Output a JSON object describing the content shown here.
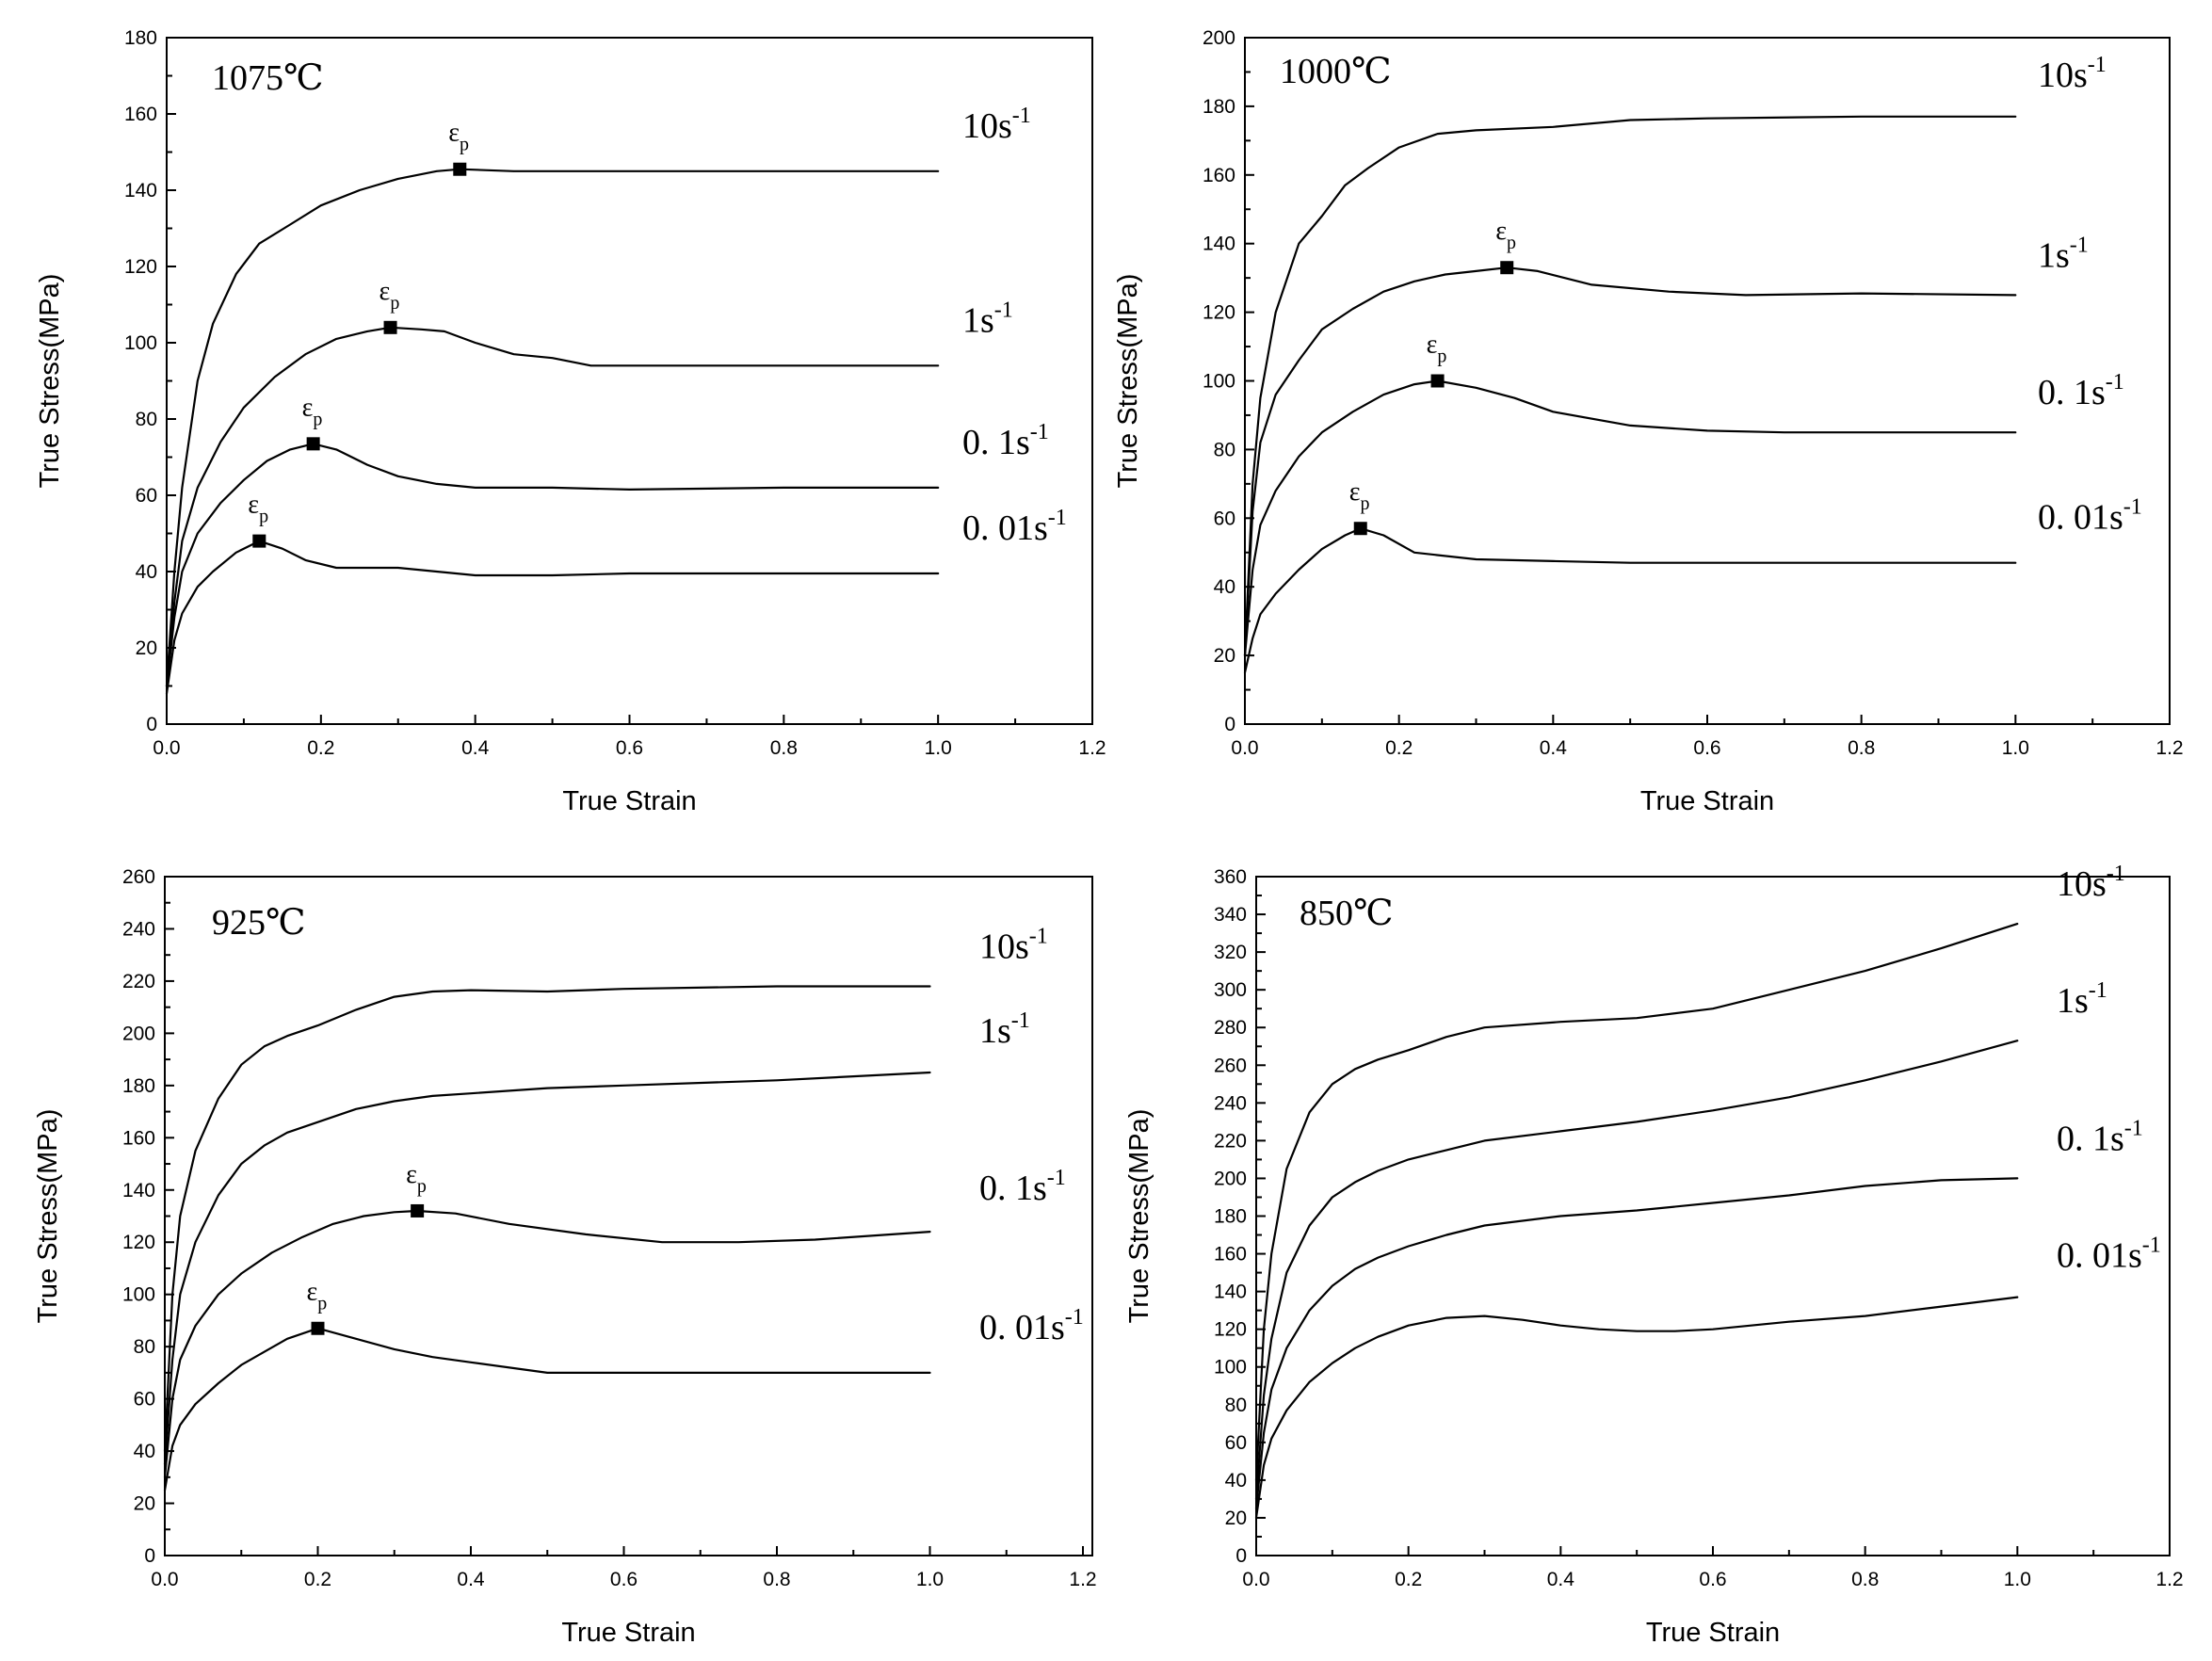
{
  "chart_data": [
    {
      "type": "line",
      "title": "1075℃",
      "xlabel": "True Strain",
      "ylabel": "True Stress(MPa)",
      "xlim": [
        0,
        1.25
      ],
      "ylim": [
        0,
        180
      ],
      "xticks": [
        "0.0",
        "0.2",
        "0.4",
        "0.6",
        "0.8",
        "1.0",
        "1.2"
      ],
      "yticks": [
        "0",
        "20",
        "40",
        "60",
        "80",
        "100",
        "120",
        "140",
        "160",
        "180"
      ],
      "peak_symbol": "ε",
      "peak_subscript": "p",
      "series": [
        {
          "name": "10s",
          "exp": "-1",
          "x": [
            0,
            0.01,
            0.02,
            0.04,
            0.06,
            0.09,
            0.12,
            0.16,
            0.2,
            0.25,
            0.3,
            0.35,
            0.38,
            0.45,
            0.6,
            0.8,
            1.0
          ],
          "y": [
            10,
            40,
            62,
            90,
            105,
            118,
            126,
            131,
            136,
            140,
            143,
            145,
            145.5,
            145,
            145,
            145,
            145
          ],
          "peak": {
            "x": 0.38,
            "y": 145.5
          }
        },
        {
          "name": "1s",
          "exp": "-1",
          "x": [
            0,
            0.01,
            0.02,
            0.04,
            0.07,
            0.1,
            0.14,
            0.18,
            0.22,
            0.26,
            0.29,
            0.33,
            0.36,
            0.4,
            0.45,
            0.5,
            0.55,
            0.6,
            0.8,
            1.0
          ],
          "y": [
            10,
            32,
            48,
            62,
            74,
            83,
            91,
            97,
            101,
            103,
            104,
            103.5,
            103,
            100,
            97,
            96,
            94,
            94,
            94,
            94
          ],
          "peak": {
            "x": 0.29,
            "y": 104
          }
        },
        {
          "name": "0. 1s",
          "exp": "-1",
          "x": [
            0,
            0.01,
            0.02,
            0.04,
            0.07,
            0.1,
            0.13,
            0.16,
            0.19,
            0.22,
            0.26,
            0.3,
            0.35,
            0.4,
            0.5,
            0.6,
            0.8,
            1.0
          ],
          "y": [
            10,
            28,
            40,
            50,
            58,
            64,
            69,
            72,
            73.5,
            72,
            68,
            65,
            63,
            62,
            62,
            61.5,
            62,
            62
          ],
          "peak": {
            "x": 0.19,
            "y": 73.5
          }
        },
        {
          "name": "0. 01s",
          "exp": "-1",
          "x": [
            0,
            0.01,
            0.02,
            0.04,
            0.06,
            0.09,
            0.12,
            0.15,
            0.18,
            0.22,
            0.3,
            0.4,
            0.5,
            0.6,
            0.8,
            1.0
          ],
          "y": [
            8,
            22,
            29,
            36,
            40,
            45,
            48,
            46,
            43,
            41,
            41,
            39,
            39,
            39.5,
            39.5,
            39.5
          ],
          "peak": {
            "x": 0.12,
            "y": 48
          }
        }
      ]
    },
    {
      "type": "line",
      "title": "1000℃",
      "xlabel": "True Strain",
      "ylabel": "True Stress(MPa)",
      "xlim": [
        0,
        1.2
      ],
      "ylim": [
        0,
        200
      ],
      "xticks": [
        "0.0",
        "0.2",
        "0.4",
        "0.6",
        "0.8",
        "1.0",
        "1.2"
      ],
      "yticks": [
        "0",
        "20",
        "40",
        "60",
        "80",
        "100",
        "120",
        "140",
        "160",
        "180",
        "200"
      ],
      "peak_symbol": "ε",
      "peak_subscript": "p",
      "series": [
        {
          "name": "10s",
          "exp": "-1",
          "x": [
            0,
            0.01,
            0.02,
            0.04,
            0.07,
            0.1,
            0.13,
            0.16,
            0.2,
            0.25,
            0.3,
            0.4,
            0.5,
            0.6,
            0.8,
            1.0
          ],
          "y": [
            20,
            70,
            95,
            120,
            140,
            148,
            157,
            162,
            168,
            172,
            173,
            174,
            176,
            176.5,
            177,
            177
          ],
          "peak": null
        },
        {
          "name": "1s",
          "exp": "-1",
          "x": [
            0,
            0.01,
            0.02,
            0.04,
            0.07,
            0.1,
            0.14,
            0.18,
            0.22,
            0.26,
            0.3,
            0.34,
            0.38,
            0.45,
            0.55,
            0.65,
            0.8,
            1.0
          ],
          "y": [
            20,
            62,
            82,
            96,
            106,
            115,
            121,
            126,
            129,
            131,
            132,
            133,
            132,
            128,
            126,
            125,
            125.5,
            125
          ],
          "peak": {
            "x": 0.34,
            "y": 133
          }
        },
        {
          "name": "0. 1s",
          "exp": "-1",
          "x": [
            0,
            0.01,
            0.02,
            0.04,
            0.07,
            0.1,
            0.14,
            0.18,
            0.22,
            0.25,
            0.3,
            0.35,
            0.4,
            0.5,
            0.6,
            0.7,
            0.8,
            1.0
          ],
          "y": [
            20,
            45,
            58,
            68,
            78,
            85,
            91,
            96,
            99,
            100,
            98,
            95,
            91,
            87,
            85.5,
            85,
            85,
            85
          ],
          "peak": {
            "x": 0.25,
            "y": 100
          }
        },
        {
          "name": "0. 01s",
          "exp": "-1",
          "x": [
            0,
            0.01,
            0.02,
            0.04,
            0.07,
            0.1,
            0.13,
            0.15,
            0.18,
            0.22,
            0.3,
            0.4,
            0.5,
            0.6,
            0.8,
            1.0
          ],
          "y": [
            15,
            25,
            32,
            38,
            45,
            51,
            55,
            57,
            55,
            50,
            48,
            47.5,
            47,
            47,
            47,
            47
          ],
          "peak": {
            "x": 0.15,
            "y": 57
          }
        }
      ]
    },
    {
      "type": "line",
      "title": "925℃",
      "xlabel": "True Strain",
      "ylabel": "True Stress(MPa)",
      "xlim": [
        0,
        1.2
      ],
      "ylim": [
        0,
        260
      ],
      "xticks": [
        "0.0",
        "0.2",
        "0.4",
        "0.6",
        "0.8",
        "1.0",
        "1.2"
      ],
      "yticks": [
        "0",
        "20",
        "40",
        "60",
        "80",
        "100",
        "120",
        "140",
        "160",
        "180",
        "200",
        "220",
        "240",
        "260"
      ],
      "peak_symbol": "ε",
      "peak_subscript": "p",
      "series": [
        {
          "name": "10s",
          "exp": "-1",
          "x": [
            0,
            0.01,
            0.02,
            0.04,
            0.07,
            0.1,
            0.13,
            0.16,
            0.2,
            0.25,
            0.3,
            0.35,
            0.4,
            0.5,
            0.6,
            0.8,
            1.0
          ],
          "y": [
            40,
            100,
            130,
            155,
            175,
            188,
            195,
            199,
            203,
            209,
            214,
            216,
            216.5,
            216,
            217,
            218,
            218
          ],
          "peak": null
        },
        {
          "name": "1s",
          "exp": "-1",
          "x": [
            0,
            0.01,
            0.02,
            0.04,
            0.07,
            0.1,
            0.13,
            0.16,
            0.2,
            0.25,
            0.3,
            0.35,
            0.4,
            0.5,
            0.6,
            0.8,
            1.0
          ],
          "y": [
            35,
            75,
            100,
            120,
            138,
            150,
            157,
            162,
            166,
            171,
            174,
            176,
            177,
            179,
            180,
            182,
            185
          ],
          "peak": null
        },
        {
          "name": "0. 1s",
          "exp": "-1",
          "x": [
            0,
            0.01,
            0.02,
            0.04,
            0.07,
            0.1,
            0.14,
            0.18,
            0.22,
            0.26,
            0.3,
            0.33,
            0.38,
            0.45,
            0.55,
            0.65,
            0.75,
            0.85,
            1.0
          ],
          "y": [
            30,
            60,
            75,
            88,
            100,
            108,
            116,
            122,
            127,
            130,
            131.5,
            132,
            131,
            127,
            123,
            120,
            120,
            121,
            124
          ],
          "peak": {
            "x": 0.33,
            "y": 132
          }
        },
        {
          "name": "0. 01s",
          "exp": "-1",
          "x": [
            0,
            0.01,
            0.02,
            0.04,
            0.07,
            0.1,
            0.13,
            0.16,
            0.2,
            0.25,
            0.3,
            0.35,
            0.4,
            0.5,
            0.6,
            0.8,
            1.0
          ],
          "y": [
            25,
            42,
            50,
            58,
            66,
            73,
            78,
            83,
            87,
            83,
            79,
            76,
            74,
            70,
            70,
            70,
            70
          ],
          "peak": {
            "x": 0.2,
            "y": 87
          }
        }
      ]
    },
    {
      "type": "line",
      "title": "850℃",
      "xlabel": "True Strain",
      "ylabel": "True Stress(MPa)",
      "xlim": [
        0,
        1.2
      ],
      "ylim": [
        0,
        360
      ],
      "xticks": [
        "0.0",
        "0.2",
        "0.4",
        "0.6",
        "0.8",
        "1.0",
        "1.2"
      ],
      "yticks": [
        "0",
        "20",
        "40",
        "60",
        "80",
        "100",
        "120",
        "140",
        "160",
        "180",
        "200",
        "220",
        "240",
        "260",
        "280",
        "300",
        "320",
        "340",
        "360"
      ],
      "peak_symbol": "ε",
      "peak_subscript": "p",
      "series": [
        {
          "name": "10s",
          "exp": "-1",
          "x": [
            0,
            0.01,
            0.02,
            0.04,
            0.07,
            0.1,
            0.13,
            0.16,
            0.2,
            0.25,
            0.3,
            0.4,
            0.5,
            0.6,
            0.7,
            0.8,
            0.9,
            1.0
          ],
          "y": [
            40,
            120,
            160,
            205,
            235,
            250,
            258,
            263,
            268,
            275,
            280,
            283,
            285,
            290,
            300,
            310,
            322,
            335
          ],
          "peak": null
        },
        {
          "name": "1s",
          "exp": "-1",
          "x": [
            0,
            0.01,
            0.02,
            0.04,
            0.07,
            0.1,
            0.13,
            0.16,
            0.2,
            0.25,
            0.3,
            0.4,
            0.5,
            0.6,
            0.7,
            0.8,
            0.9,
            1.0
          ],
          "y": [
            30,
            85,
            115,
            150,
            175,
            190,
            198,
            204,
            210,
            215,
            220,
            225,
            230,
            236,
            243,
            252,
            262,
            273
          ],
          "peak": null
        },
        {
          "name": "0. 1s",
          "exp": "-1",
          "x": [
            0,
            0.01,
            0.02,
            0.04,
            0.07,
            0.1,
            0.13,
            0.16,
            0.2,
            0.25,
            0.3,
            0.4,
            0.5,
            0.6,
            0.7,
            0.8,
            0.9,
            1.0
          ],
          "y": [
            25,
            65,
            88,
            110,
            130,
            143,
            152,
            158,
            164,
            170,
            175,
            180,
            183,
            187,
            191,
            196,
            199,
            200
          ],
          "peak": null
        },
        {
          "name": "0. 01s",
          "exp": "-1",
          "x": [
            0,
            0.01,
            0.02,
            0.04,
            0.07,
            0.1,
            0.13,
            0.16,
            0.2,
            0.25,
            0.3,
            0.35,
            0.4,
            0.45,
            0.5,
            0.55,
            0.6,
            0.7,
            0.8,
            0.9,
            1.0
          ],
          "y": [
            20,
            48,
            62,
            77,
            92,
            102,
            110,
            116,
            122,
            126,
            127,
            125,
            122,
            120,
            119,
            119,
            120,
            124,
            127,
            132,
            137
          ],
          "peak": null
        }
      ]
    }
  ]
}
